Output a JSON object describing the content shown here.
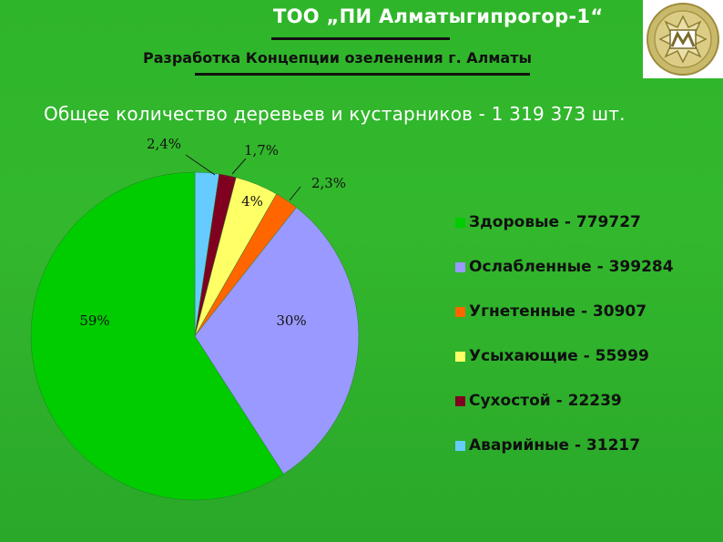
{
  "header": {
    "org_title": "ТОО „ПИ Алматыгипрогор-1“",
    "subtitle": "Разработка Концепции озеленения г. Алматы",
    "logo_icon": "city-emblem-icon"
  },
  "chart_data": {
    "type": "pie",
    "title": "Общее количество деревьев и кустарников - 1 319 373 шт.",
    "legend_position": "right",
    "slices": [
      {
        "legend": "Здоровые - 779727",
        "value": 779727,
        "label": "59%",
        "color": "#00cc00"
      },
      {
        "legend": "Ослабленные - 399284",
        "value": 399284,
        "label": "30%",
        "color": "#9999ff"
      },
      {
        "legend": "Угнетенные - 30907",
        "value": 30907,
        "label": "2,3%",
        "color": "#ff6600"
      },
      {
        "legend": "Усыхающие - 55999",
        "value": 55999,
        "label": "4%",
        "color": "#ffff66"
      },
      {
        "legend": "Сухостой - 22239",
        "value": 22239,
        "label": "1,7%",
        "color": "#800020"
      },
      {
        "legend": "Аварийные - 31217",
        "value": 31217,
        "label": "2,4%",
        "color": "#66ccff"
      }
    ]
  }
}
